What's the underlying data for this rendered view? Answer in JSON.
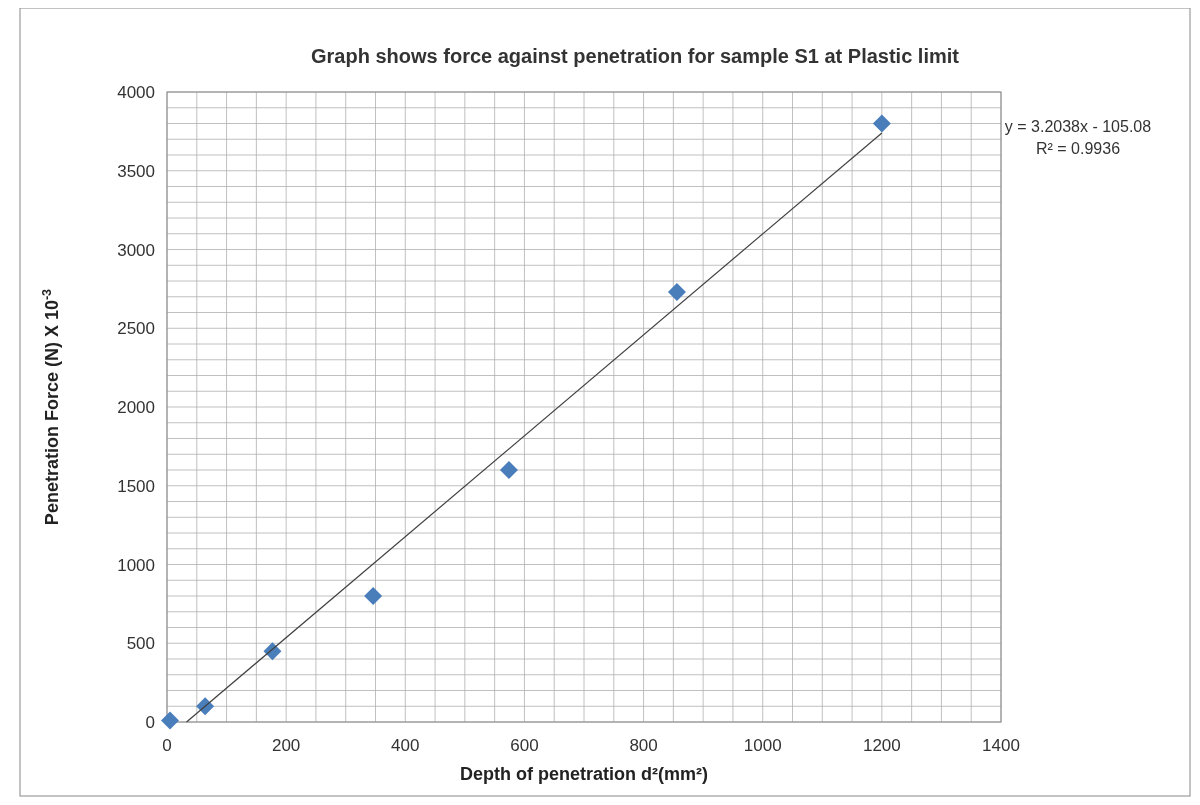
{
  "chart_data": {
    "type": "scatter",
    "title": "Graph shows  force against penetration for sample S1 at Plastic  limit",
    "xlabel": "Depth of penetration d²(mm²)",
    "ylabel": "Penetration Force (N) X 10$^{-3}$",
    "annotations": [
      "y = 3.2038x - 105.08",
      "R² = 0.9936"
    ],
    "xlim": [
      0,
      1400
    ],
    "xticks": [
      0,
      200,
      400,
      600,
      800,
      1000,
      1200,
      1400
    ],
    "ylim": [
      0,
      4000
    ],
    "yticks": [
      0,
      500,
      1000,
      1500,
      2000,
      2500,
      3000,
      3500,
      4000
    ],
    "grid": true,
    "series": [
      {
        "marker": "diamond",
        "color": "#4a7ebb",
        "x": [
          5,
          64,
          177,
          346,
          574,
          856,
          1200
        ],
        "values": [
          10,
          100,
          450,
          800,
          1600,
          2730,
          3800
        ]
      },
      {
        "type": "line",
        "color": "#404040",
        "line_style": "solid",
        "x": [
          32.8,
          1200
        ],
        "values": [
          0,
          3740
        ]
      }
    ]
  }
}
